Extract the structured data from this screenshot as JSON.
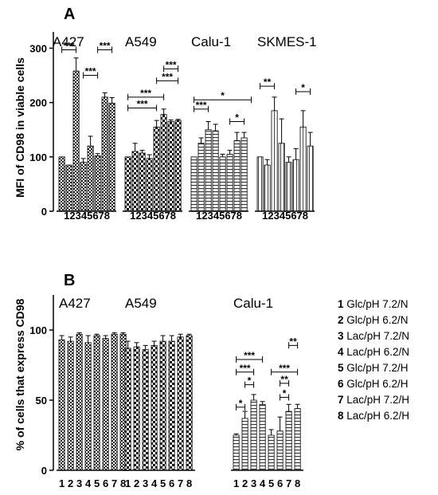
{
  "chart_data": [
    {
      "panel": "A",
      "type": "bar",
      "ylabel": "MFI of CD98 in viable cells",
      "ylim": [
        0,
        330
      ],
      "yticks": [
        0,
        100,
        200,
        300
      ],
      "categories": [
        "1",
        "2",
        "3",
        "4",
        "5",
        "6",
        "7",
        "8"
      ],
      "series": [
        {
          "name": "A427",
          "pattern": "check-small",
          "values": [
            100,
            85,
            258,
            90,
            120,
            102,
            210,
            199
          ],
          "errors": [
            0,
            0,
            24,
            7,
            18,
            4,
            8,
            10
          ]
        },
        {
          "name": "A549",
          "pattern": "check-large",
          "values": [
            100,
            110,
            107,
            97,
            155,
            178,
            165,
            167
          ],
          "errors": [
            0,
            15,
            5,
            7,
            12,
            10,
            3,
            2
          ]
        },
        {
          "name": "Calu-1",
          "pattern": "h-stripe",
          "values": [
            100,
            125,
            150,
            148,
            100,
            105,
            130,
            135
          ],
          "errors": [
            0,
            10,
            15,
            12,
            5,
            7,
            15,
            10
          ]
        },
        {
          "name": "SKMES-1",
          "pattern": "v-stripe",
          "values": [
            100,
            85,
            185,
            125,
            90,
            95,
            155,
            120
          ],
          "errors": [
            0,
            10,
            25,
            45,
            10,
            20,
            30,
            25
          ]
        }
      ],
      "significance": [
        {
          "group": 0,
          "from": 1,
          "to": 3,
          "label": "***",
          "y": 297
        },
        {
          "group": 0,
          "from": 6,
          "to": 8,
          "label": "***",
          "y": 297
        },
        {
          "group": 0,
          "from": 4,
          "to": 6,
          "label": "***",
          "y": 250
        },
        {
          "group": 1,
          "from": 6,
          "to": 8,
          "label": "***",
          "y": 262
        },
        {
          "group": 1,
          "from": 5,
          "to": 8,
          "label": "***",
          "y": 240
        },
        {
          "group": 1,
          "from": 1,
          "to": 6,
          "label": "***",
          "y": 210
        },
        {
          "group": 1,
          "from": 1,
          "to": 5,
          "label": "***",
          "y": 190
        },
        {
          "group": 2,
          "from": 1,
          "to": 9,
          "label": "*",
          "y": 205
        },
        {
          "group": 2,
          "from": 1,
          "to": 3,
          "label": "***",
          "y": 188
        },
        {
          "group": 2,
          "from": 6,
          "to": 8,
          "label": "*",
          "y": 165
        },
        {
          "group": 3,
          "from": 1,
          "to": 3,
          "label": "**",
          "y": 230
        },
        {
          "group": 3,
          "from": 6,
          "to": 8,
          "label": "*",
          "y": 220
        }
      ]
    },
    {
      "panel": "B",
      "type": "bar",
      "ylabel": "% of cells that express CD98",
      "ylim": [
        0,
        125
      ],
      "yticks": [
        0,
        50,
        100
      ],
      "categories": [
        "1",
        "2",
        "3",
        "4",
        "5",
        "6",
        "7",
        "8"
      ],
      "series": [
        {
          "name": "A427",
          "pattern": "check-small",
          "values": [
            93,
            92,
            97,
            91,
            96,
            94,
            97,
            97
          ],
          "errors": [
            3,
            3,
            1,
            5,
            1,
            2,
            1,
            1
          ]
        },
        {
          "name": "A549",
          "pattern": "check-large",
          "values": [
            87,
            88,
            86,
            89,
            92,
            92,
            95,
            96
          ],
          "errors": [
            5,
            3,
            3,
            3,
            4,
            4,
            2,
            1
          ]
        },
        {
          "name": "Calu-1",
          "pattern": "h-stripe",
          "values": [
            25,
            37,
            50,
            47,
            25,
            28,
            42,
            44
          ],
          "errors": [
            1,
            5,
            4,
            2,
            4,
            10,
            5,
            3
          ]
        }
      ],
      "significance": [
        {
          "group": 2,
          "from": 1,
          "to": 4,
          "label": "***",
          "y": 79
        },
        {
          "group": 2,
          "from": 1,
          "to": 3,
          "label": "***",
          "y": 70
        },
        {
          "group": 2,
          "from": 2,
          "to": 3,
          "label": "*",
          "y": 61
        },
        {
          "group": 2,
          "from": 1,
          "to": 2,
          "label": "*",
          "y": 45
        },
        {
          "group": 2,
          "from": 7,
          "to": 8,
          "label": "**",
          "y": 89
        },
        {
          "group": 2,
          "from": 5,
          "to": 8,
          "label": "***",
          "y": 70
        },
        {
          "group": 2,
          "from": 6,
          "to": 7,
          "label": "**",
          "y": 62
        },
        {
          "group": 2,
          "from": 6,
          "to": 7,
          "label": "*",
          "y": 52
        }
      ]
    }
  ],
  "legend": [
    {
      "num": "1",
      "label": "Glc/pH 7.2/N"
    },
    {
      "num": "2",
      "label": "Glc/pH 6.2/N"
    },
    {
      "num": "3",
      "label": "Lac/pH 7.2/N"
    },
    {
      "num": "4",
      "label": "Lac/pH 6.2/N"
    },
    {
      "num": "5",
      "label": "Glc/pH 7.2/H"
    },
    {
      "num": "6",
      "label": "Glc/pH 6.2/H"
    },
    {
      "num": "7",
      "label": "Lac/pH 7.2/H"
    },
    {
      "num": "8",
      "label": "Lac/pH 6.2/H"
    }
  ],
  "xticklabels_A": "12345678"
}
